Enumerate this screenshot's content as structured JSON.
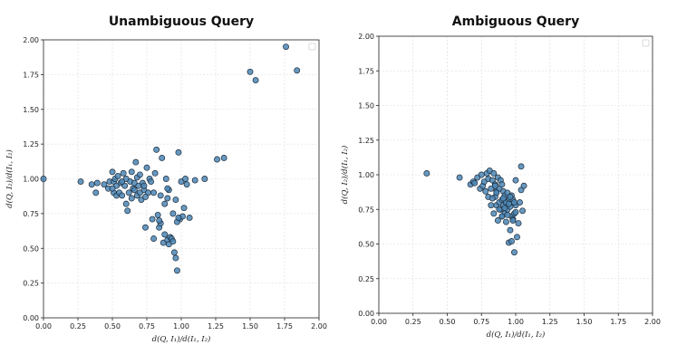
{
  "chart_data": [
    {
      "type": "scatter",
      "title": "Unambiguous Query",
      "xlabel": "d(Q, I₁)/d(I₁, I₂)",
      "ylabel": "d(Q, I₂)/d(I₁, I₂)",
      "xlim": [
        0,
        2
      ],
      "ylim": [
        0,
        2
      ],
      "xticks": [
        "0.00",
        "0.25",
        "0.50",
        "0.75",
        "1.00",
        "1.25",
        "1.50",
        "1.75",
        "2.00"
      ],
      "yticks": [
        "0.00",
        "0.25",
        "0.50",
        "0.75",
        "1.00",
        "1.25",
        "1.50",
        "1.75",
        "2.00"
      ],
      "grid": true,
      "legend": "top-right (empty)",
      "marker_color": "#4c86b5",
      "x": [
        0.0,
        0.27,
        0.35,
        0.38,
        0.39,
        0.44,
        0.47,
        0.48,
        0.5,
        0.51,
        0.51,
        0.52,
        0.53,
        0.53,
        0.54,
        0.55,
        0.56,
        0.57,
        0.58,
        0.59,
        0.6,
        0.6,
        0.61,
        0.62,
        0.63,
        0.64,
        0.64,
        0.65,
        0.66,
        0.67,
        0.68,
        0.68,
        0.69,
        0.7,
        0.7,
        0.71,
        0.72,
        0.73,
        0.74,
        0.75,
        0.76,
        0.77,
        0.78,
        0.79,
        0.8,
        0.81,
        0.82,
        0.83,
        0.84,
        0.85,
        0.86,
        0.87,
        0.88,
        0.89,
        0.9,
        0.9,
        0.91,
        0.92,
        0.93,
        0.94,
        0.95,
        0.96,
        0.97,
        0.98,
        0.99,
        1.0,
        1.01,
        1.02,
        1.03,
        1.04,
        1.06,
        1.1,
        1.17,
        1.26,
        1.31,
        1.5,
        1.54,
        1.76,
        1.84,
        0.5,
        0.57,
        0.66,
        0.73,
        0.8,
        0.85,
        0.88,
        0.91,
        0.94,
        0.96,
        0.97,
        0.98,
        0.74,
        0.84,
        0.9
      ],
      "y": [
        1.0,
        0.98,
        0.96,
        0.9,
        0.97,
        0.96,
        0.93,
        0.98,
        1.05,
        0.9,
        0.98,
        1.0,
        0.95,
        0.88,
        1.02,
        0.9,
        0.97,
        0.88,
        1.04,
        0.95,
        0.82,
        1.0,
        0.77,
        0.9,
        0.98,
        1.05,
        0.86,
        0.93,
        0.97,
        1.12,
        0.88,
        1.01,
        0.95,
        0.9,
        1.03,
        0.85,
        0.97,
        0.92,
        0.65,
        1.08,
        0.9,
        1.0,
        0.98,
        0.71,
        0.57,
        1.04,
        1.21,
        0.74,
        0.65,
        0.68,
        1.15,
        0.54,
        0.82,
        1.0,
        0.56,
        0.86,
        0.53,
        0.58,
        0.57,
        0.75,
        0.47,
        0.43,
        0.34,
        1.19,
        0.71,
        0.98,
        0.73,
        0.79,
        1.0,
        0.96,
        0.72,
        0.99,
        1.0,
        1.14,
        1.15,
        1.77,
        1.71,
        1.95,
        1.78,
        0.93,
        0.98,
        0.92,
        0.95,
        0.9,
        0.88,
        0.6,
        0.92,
        0.55,
        0.85,
        0.69,
        0.72,
        0.87,
        0.7,
        0.93
      ]
    },
    {
      "type": "scatter",
      "title": "Ambiguous Query",
      "xlabel": "d(Q, I₁)/d(I₁, I₂)",
      "ylabel": "d(Q, I₂)/d(I₁, I₂)",
      "xlim": [
        0,
        2
      ],
      "ylim": [
        0,
        2
      ],
      "xticks": [
        "0.00",
        "0.25",
        "0.50",
        "0.75",
        "1.00",
        "1.25",
        "1.50",
        "1.75",
        "2.00"
      ],
      "yticks": [
        "0.00",
        "0.25",
        "0.50",
        "0.75",
        "1.00",
        "1.25",
        "1.50",
        "1.75",
        "2.00"
      ],
      "grid": true,
      "legend": "top-right (empty)",
      "marker_color": "#4c86b5",
      "x": [
        0.35,
        0.59,
        0.67,
        0.69,
        0.7,
        0.72,
        0.74,
        0.75,
        0.76,
        0.77,
        0.78,
        0.79,
        0.8,
        0.8,
        0.81,
        0.82,
        0.82,
        0.83,
        0.84,
        0.84,
        0.85,
        0.85,
        0.86,
        0.86,
        0.87,
        0.87,
        0.88,
        0.88,
        0.89,
        0.89,
        0.9,
        0.9,
        0.9,
        0.91,
        0.91,
        0.92,
        0.92,
        0.93,
        0.93,
        0.94,
        0.94,
        0.95,
        0.95,
        0.96,
        0.96,
        0.97,
        0.97,
        0.98,
        0.98,
        0.99,
        0.99,
        1.0,
        1.0,
        1.01,
        1.02,
        1.03,
        1.04,
        1.04,
        1.05,
        1.06,
        0.83,
        0.88,
        0.93,
        0.97,
        1.0,
        0.86,
        0.9,
        0.95,
        0.99,
        0.92,
        0.96,
        0.94,
        0.98,
        0.85,
        0.91
      ],
      "y": [
        1.01,
        0.98,
        0.93,
        0.95,
        0.94,
        0.98,
        0.9,
        1.0,
        0.92,
        0.95,
        0.88,
        1.01,
        0.84,
        0.97,
        1.03,
        0.78,
        0.9,
        0.96,
        0.72,
        1.01,
        0.84,
        0.93,
        0.78,
        0.88,
        0.67,
        0.98,
        0.8,
        0.9,
        0.75,
        0.96,
        0.7,
        0.82,
        0.93,
        0.78,
        0.88,
        0.72,
        0.85,
        0.66,
        0.8,
        0.75,
        0.87,
        0.51,
        0.82,
        0.6,
        0.77,
        0.52,
        0.7,
        0.68,
        0.82,
        0.44,
        0.72,
        0.78,
        0.96,
        0.55,
        0.65,
        0.8,
        1.06,
        0.89,
        0.74,
        0.92,
        0.83,
        0.75,
        0.8,
        0.85,
        0.73,
        0.87,
        0.7,
        0.79,
        0.8,
        0.76,
        0.84,
        0.71,
        0.67,
        0.92,
        0.83
      ]
    }
  ]
}
